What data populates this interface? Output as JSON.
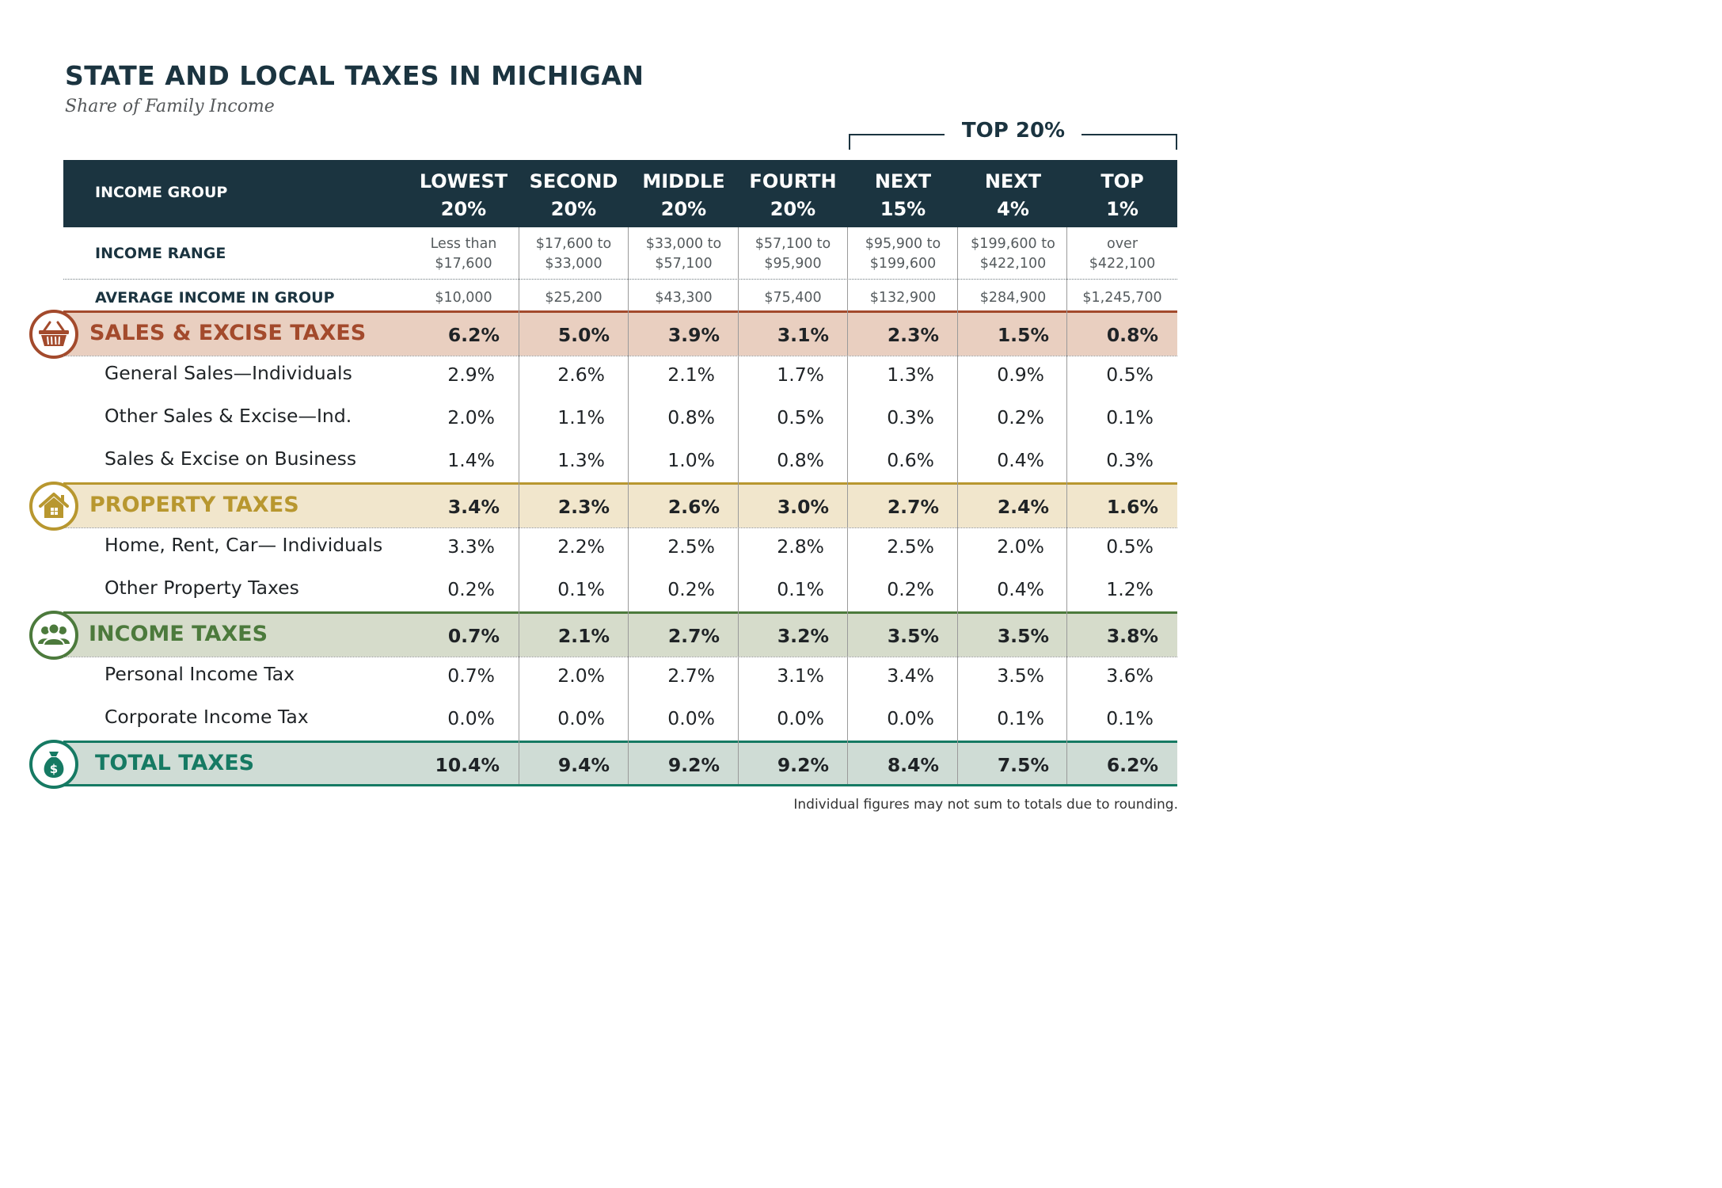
{
  "title": "STATE AND LOCAL TAXES IN MICHIGAN",
  "subtitle": "Share of Family Income",
  "top_group_label": "TOP 20%",
  "footnote": "Individual figures may not sum to totals due to rounding.",
  "colors": {
    "navy": "#1b3440",
    "sales": "#a34a2c",
    "sales_band": "#e9cfc0",
    "property": "#b8972f",
    "property_band": "#f1e6cc",
    "income": "#4c7a3c",
    "income_band": "#d6dccb",
    "total": "#167a63",
    "total_band": "#cfdcd5"
  },
  "chart_data": {
    "type": "table",
    "title": "STATE AND LOCAL TAXES IN MICHIGAN",
    "subtitle": "Share of Family Income",
    "header_label": "INCOME  GROUP",
    "columns": [
      {
        "line1": "LOWEST",
        "line2": "20%"
      },
      {
        "line1": "SECOND",
        "line2": "20%"
      },
      {
        "line1": "MIDDLE",
        "line2": "20%"
      },
      {
        "line1": "FOURTH",
        "line2": "20%"
      },
      {
        "line1": "NEXT",
        "line2": "15%"
      },
      {
        "line1": "NEXT",
        "line2": "4%"
      },
      {
        "line1": "TOP",
        "line2": "1%"
      }
    ],
    "income_range": {
      "label": "INCOME RANGE",
      "values": [
        [
          "Less than",
          "$17,600"
        ],
        [
          "$17,600 to",
          "$33,000"
        ],
        [
          "$33,000 to",
          "$57,100"
        ],
        [
          "$57,100 to",
          "$95,900"
        ],
        [
          "$95,900 to",
          "$199,600"
        ],
        [
          "$199,600 to",
          "$422,100"
        ],
        [
          "over",
          "$422,100"
        ]
      ]
    },
    "average_income": {
      "label": "AVERAGE INCOME IN GROUP",
      "values": [
        "$10,000",
        "$25,200",
        "$43,300",
        "$75,400",
        "$132,900",
        "$284,900",
        "$1,245,700"
      ]
    },
    "categories": [
      {
        "name": "SALES & EXCISE TAXES",
        "icon": "basket-icon",
        "values": [
          "6.2%",
          "5.0%",
          "3.9%",
          "3.1%",
          "2.3%",
          "1.5%",
          "0.8%"
        ],
        "rows": [
          {
            "label": "General Sales—Individuals",
            "values": [
              "2.9%",
              "2.6%",
              "2.1%",
              "1.7%",
              "1.3%",
              "0.9%",
              "0.5%"
            ]
          },
          {
            "label": "Other Sales & Excise—Ind.",
            "values": [
              "2.0%",
              "1.1%",
              "0.8%",
              "0.5%",
              "0.3%",
              "0.2%",
              "0.1%"
            ]
          },
          {
            "label": "Sales & Excise on Business",
            "values": [
              "1.4%",
              "1.3%",
              "1.0%",
              "0.8%",
              "0.6%",
              "0.4%",
              "0.3%"
            ]
          }
        ]
      },
      {
        "name": "PROPERTY TAXES",
        "icon": "house-icon",
        "values": [
          "3.4%",
          "2.3%",
          "2.6%",
          "3.0%",
          "2.7%",
          "2.4%",
          "1.6%"
        ],
        "rows": [
          {
            "label": "Home, Rent, Car— Individuals",
            "values": [
              "3.3%",
              "2.2%",
              "2.5%",
              "2.8%",
              "2.5%",
              "2.0%",
              "0.5%"
            ]
          },
          {
            "label": "Other Property Taxes",
            "values": [
              "0.2%",
              "0.1%",
              "0.2%",
              "0.1%",
              "0.2%",
              "0.4%",
              "1.2%"
            ]
          }
        ]
      },
      {
        "name": "INCOME TAXES",
        "icon": "people-icon",
        "values": [
          "0.7%",
          "2.1%",
          "2.7%",
          "3.2%",
          "3.5%",
          "3.5%",
          "3.8%"
        ],
        "rows": [
          {
            "label": "Personal Income Tax",
            "values": [
              "0.7%",
              "2.0%",
              "2.7%",
              "3.1%",
              "3.4%",
              "3.5%",
              "3.6%"
            ]
          },
          {
            "label": "Corporate Income Tax",
            "values": [
              "0.0%",
              "0.0%",
              "0.0%",
              "0.0%",
              "0.0%",
              "0.1%",
              "0.1%"
            ]
          }
        ]
      }
    ],
    "total": {
      "name": "TOTAL TAXES",
      "icon": "money-bag-icon",
      "values": [
        "10.4%",
        "9.4%",
        "9.2%",
        "9.2%",
        "8.4%",
        "7.5%",
        "6.2%"
      ]
    }
  }
}
